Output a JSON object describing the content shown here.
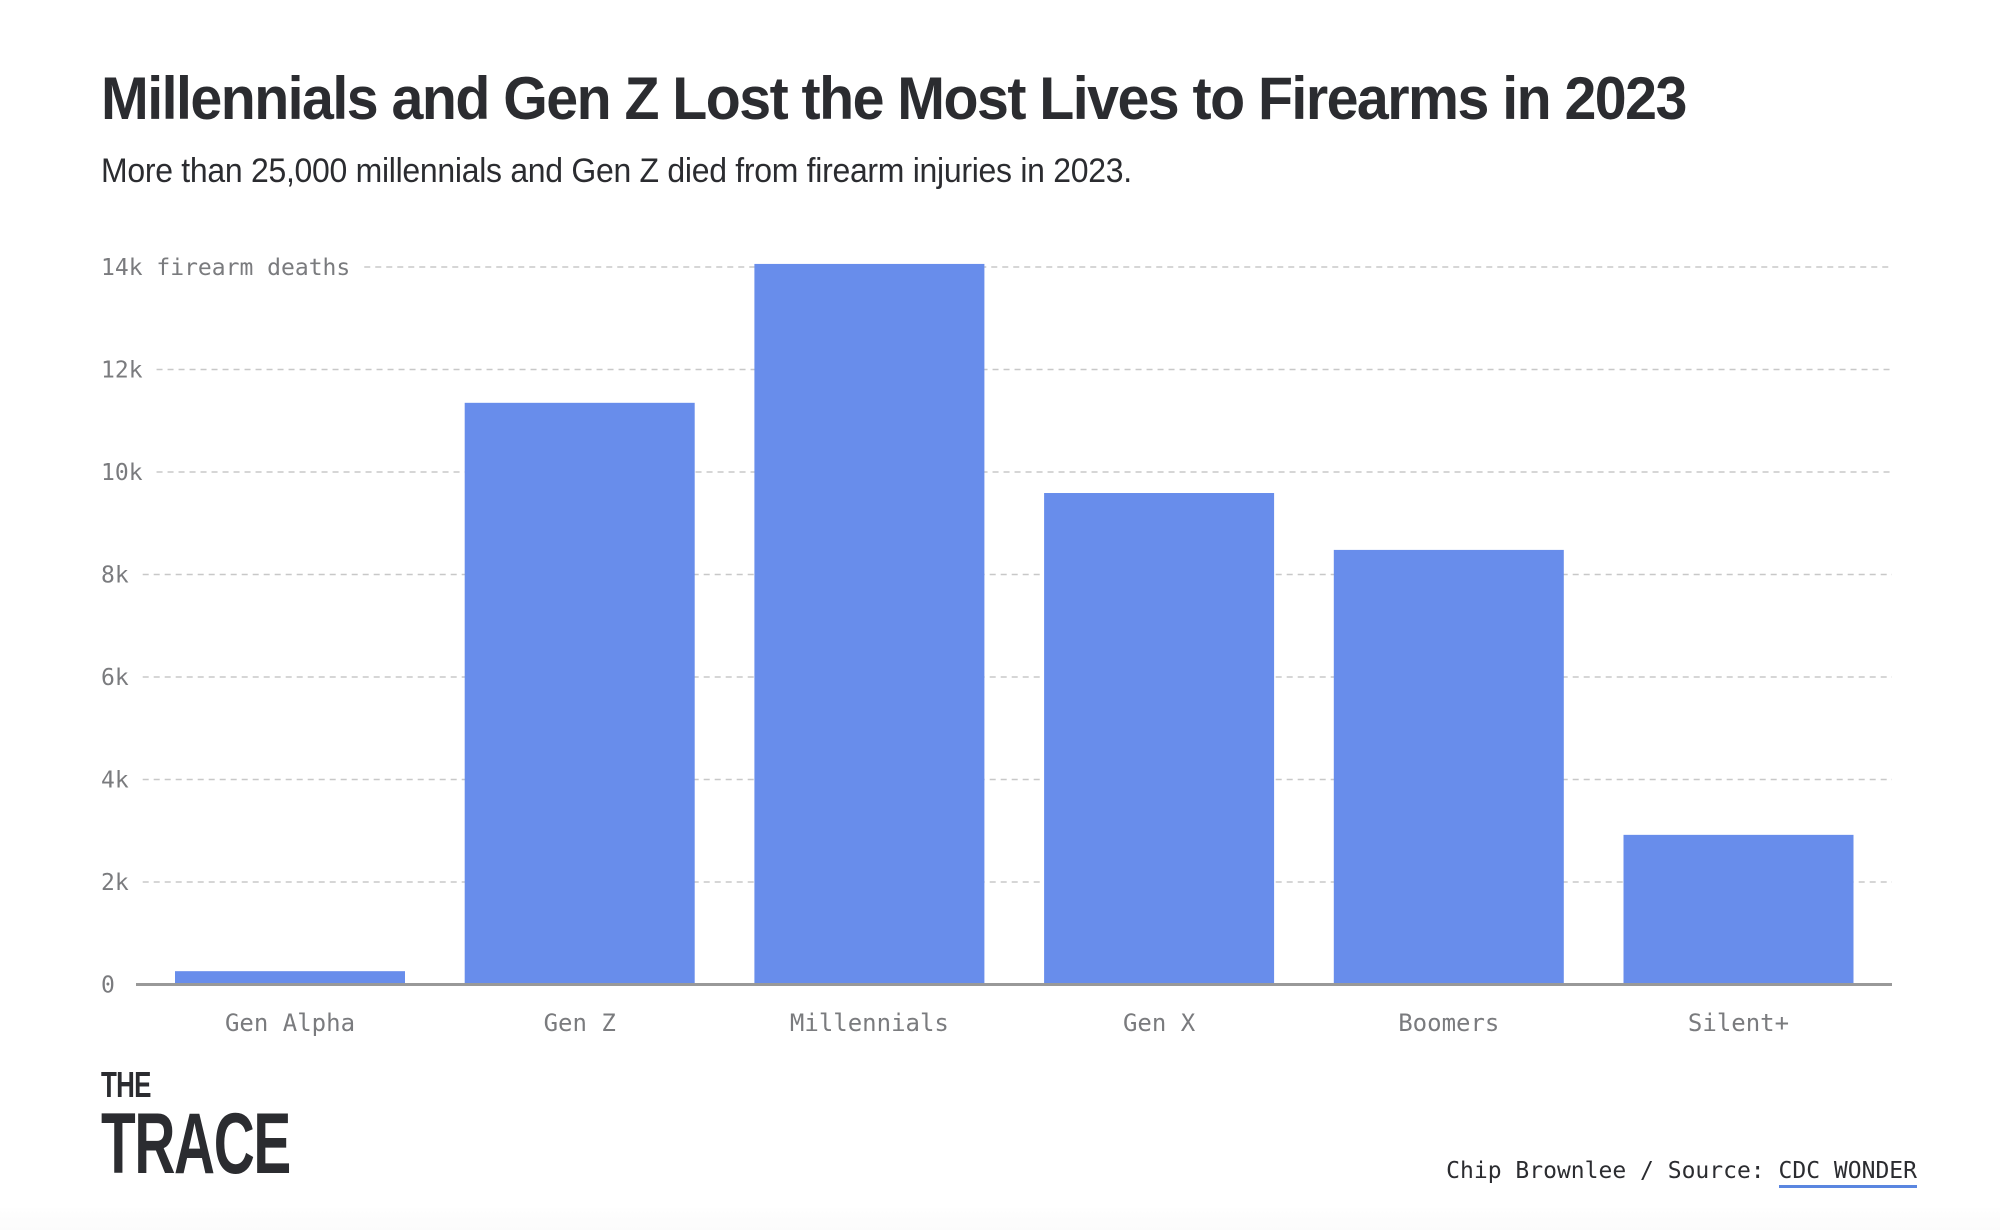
{
  "header": {
    "title": "Millennials and Gen Z Lost the Most Lives to Firearms in 2023",
    "subtitle": "More than 25,000 millennials and Gen Z died from firearm injuries in 2023."
  },
  "colors": {
    "bar": "#688deb",
    "text": "#2b2c30",
    "axis_text": "#7a7b7e",
    "gridline": "#c8c8c8",
    "baseline": "#999999",
    "link_underline": "#5a86e0"
  },
  "chart_data": {
    "type": "bar",
    "title": "Millennials and Gen Z Lost the Most Lives to Firearms in 2023",
    "subtitle": "More than 25,000 millennials and Gen Z died from firearm injuries in 2023.",
    "xlabel": "",
    "ylabel": "firearm deaths",
    "categories": [
      "Gen Alpha",
      "Gen Z",
      "Millennials",
      "Gen X",
      "Boomers",
      "Silent+"
    ],
    "values": [
      260,
      11350,
      14060,
      9590,
      8480,
      2920
    ],
    "ylim": [
      0,
      14000
    ],
    "yticks": [
      0,
      2000,
      4000,
      6000,
      8000,
      10000,
      12000,
      14000
    ],
    "ytick_labels": [
      "0",
      "2k",
      "4k",
      "6k",
      "8k",
      "10k",
      "12k",
      "14k firearm deaths"
    ],
    "grid": true,
    "legend": "none"
  },
  "footer": {
    "logo_line1": "THE",
    "logo_line2": "TRACE",
    "credit_prefix": "Chip Brownlee / Source: ",
    "source_link": "CDC WONDER"
  }
}
